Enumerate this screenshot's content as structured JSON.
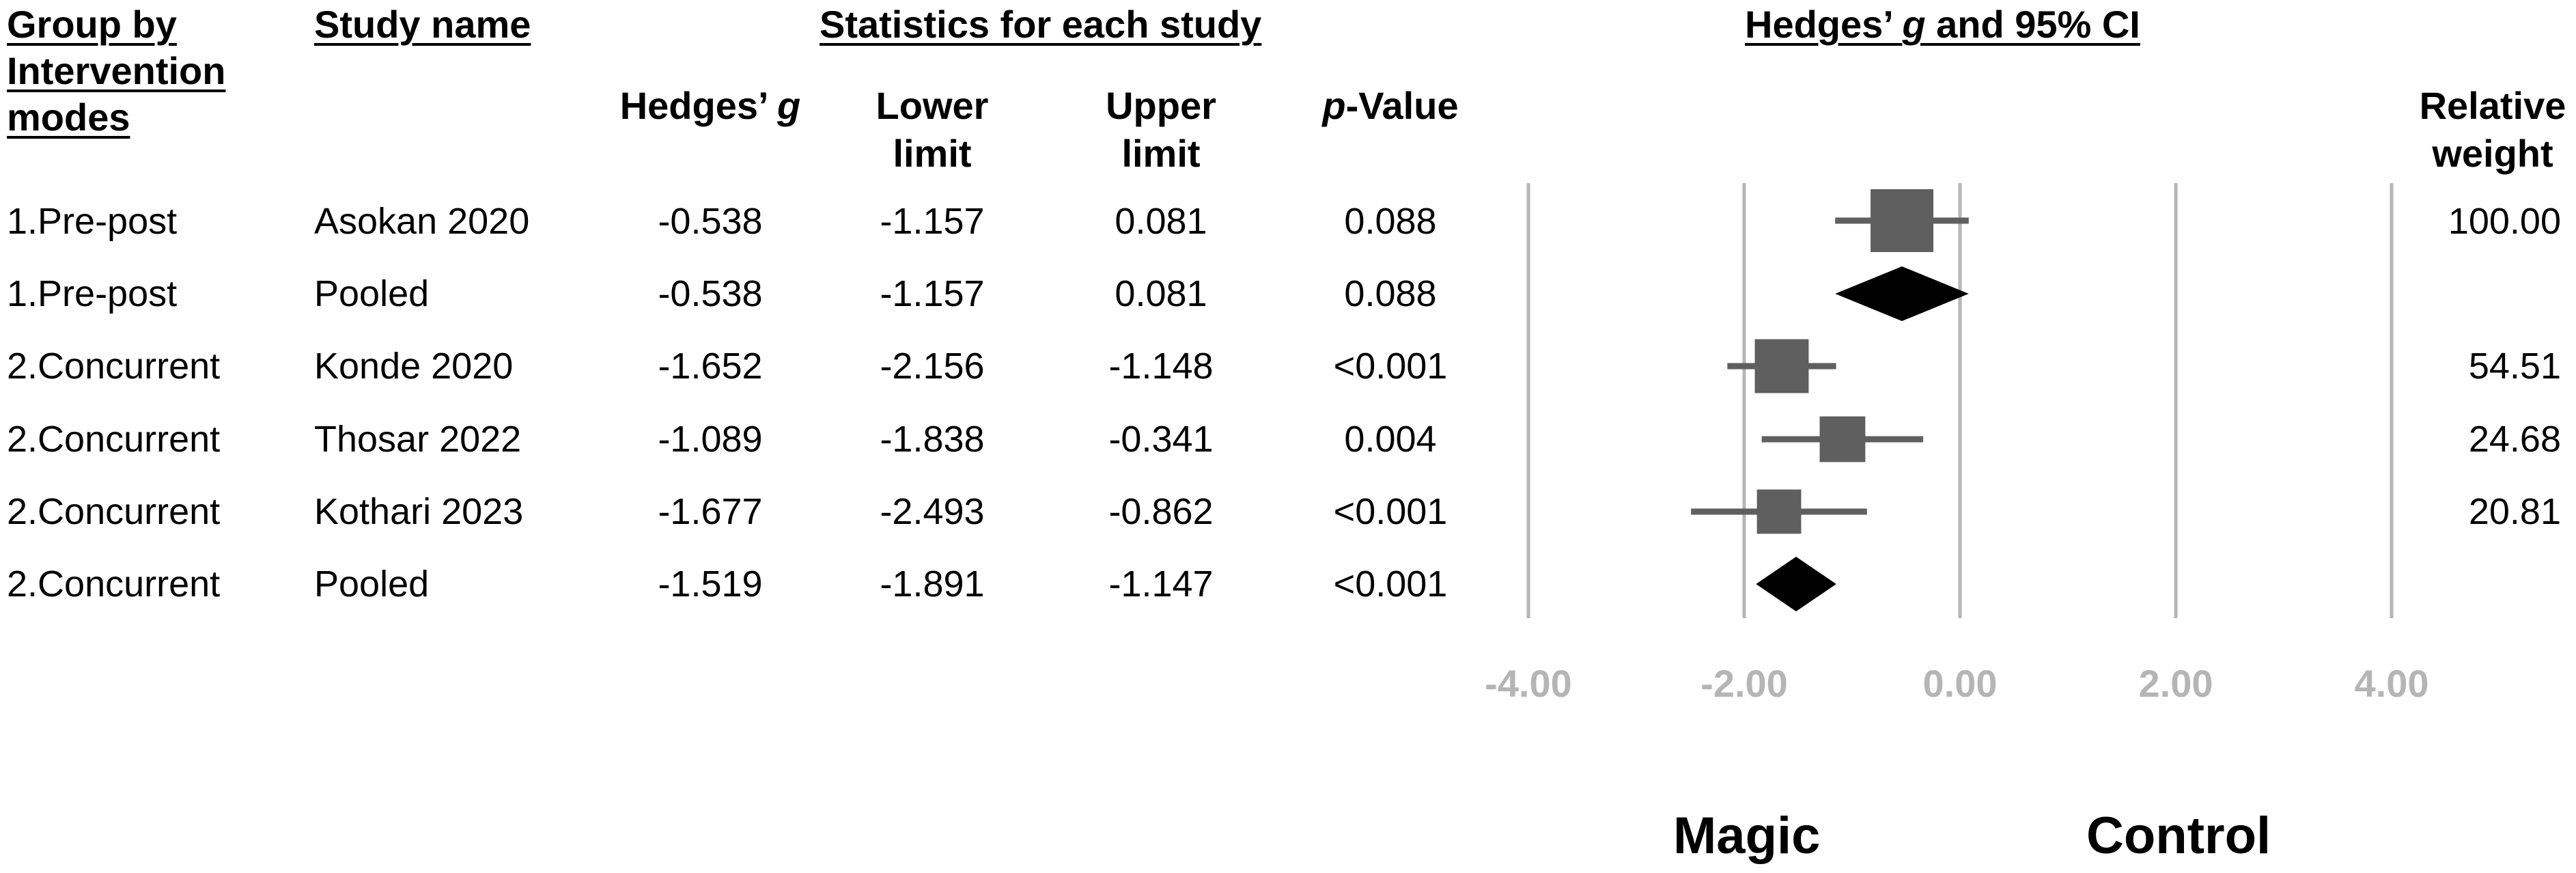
{
  "headers": {
    "group": [
      "Group by",
      "Intervention",
      "modes"
    ],
    "study": "Study name",
    "stats": "Statistics for each study",
    "ci_pre": "Hedges’ ",
    "ci_g": "g",
    "ci_post": " and 95% CI"
  },
  "columns": {
    "hedges_pre": "Hedges’ ",
    "hedges_g": "g",
    "lower": [
      "Lower",
      "limit"
    ],
    "upper": [
      "Upper",
      "limit"
    ],
    "p_pre": "p",
    "p_post": "-Value",
    "weight": [
      "Relative",
      "weight"
    ]
  },
  "rows": [
    {
      "group": "1.Pre-post",
      "study": "Asokan 2020",
      "g": "-0.538",
      "lower": "-1.157",
      "upper": "0.081",
      "p": "0.088",
      "weight": "100.00"
    },
    {
      "group": "1.Pre-post",
      "study": "Pooled",
      "g": "-0.538",
      "lower": "-1.157",
      "upper": "0.081",
      "p": "0.088",
      "weight": ""
    },
    {
      "group": "2.Concurrent",
      "study": "Konde 2020",
      "g": "-1.652",
      "lower": "-2.156",
      "upper": "-1.148",
      "p": "<0.001",
      "weight": "54.51"
    },
    {
      "group": "2.Concurrent",
      "study": "Thosar 2022",
      "g": "-1.089",
      "lower": "-1.838",
      "upper": "-0.341",
      "p": "0.004",
      "weight": "24.68"
    },
    {
      "group": "2.Concurrent",
      "study": "Kothari 2023",
      "g": "-1.677",
      "lower": "-2.493",
      "upper": "-0.862",
      "p": "<0.001",
      "weight": "20.81"
    },
    {
      "group": "2.Concurrent",
      "study": "Pooled",
      "g": "-1.519",
      "lower": "-1.891",
      "upper": "-1.147",
      "p": "<0.001",
      "weight": ""
    }
  ],
  "axis": {
    "ticks": [
      "-4.00",
      "-2.00",
      "0.00",
      "2.00",
      "4.00"
    ],
    "left_label": "Magic",
    "right_label": "Control"
  },
  "chart_data": {
    "type": "forest",
    "xlim": [
      -4,
      4
    ],
    "x_ticks": [
      -4,
      -2,
      0,
      2,
      4
    ],
    "studies": [
      {
        "name": "Asokan 2020",
        "group": "1.Pre-post",
        "g": -0.538,
        "lower": -1.157,
        "upper": 0.081,
        "weight": 100.0,
        "pooled": false
      },
      {
        "name": "Pooled",
        "group": "1.Pre-post",
        "g": -0.538,
        "lower": -1.157,
        "upper": 0.081,
        "weight": null,
        "pooled": true
      },
      {
        "name": "Konde 2020",
        "group": "2.Concurrent",
        "g": -1.652,
        "lower": -2.156,
        "upper": -1.148,
        "weight": 54.51,
        "pooled": false
      },
      {
        "name": "Thosar 2022",
        "group": "2.Concurrent",
        "g": -1.089,
        "lower": -1.838,
        "upper": -0.341,
        "weight": 24.68,
        "pooled": false
      },
      {
        "name": "Kothari 2023",
        "group": "2.Concurrent",
        "g": -1.677,
        "lower": -2.493,
        "upper": -0.862,
        "weight": 20.81,
        "pooled": false
      },
      {
        "name": "Pooled",
        "group": "2.Concurrent",
        "g": -1.519,
        "lower": -1.891,
        "upper": -1.147,
        "weight": null,
        "pooled": true
      }
    ],
    "colors": {
      "study": "#5f5f5f",
      "pooled": "#000000",
      "grid": "#b5b5b5"
    }
  }
}
